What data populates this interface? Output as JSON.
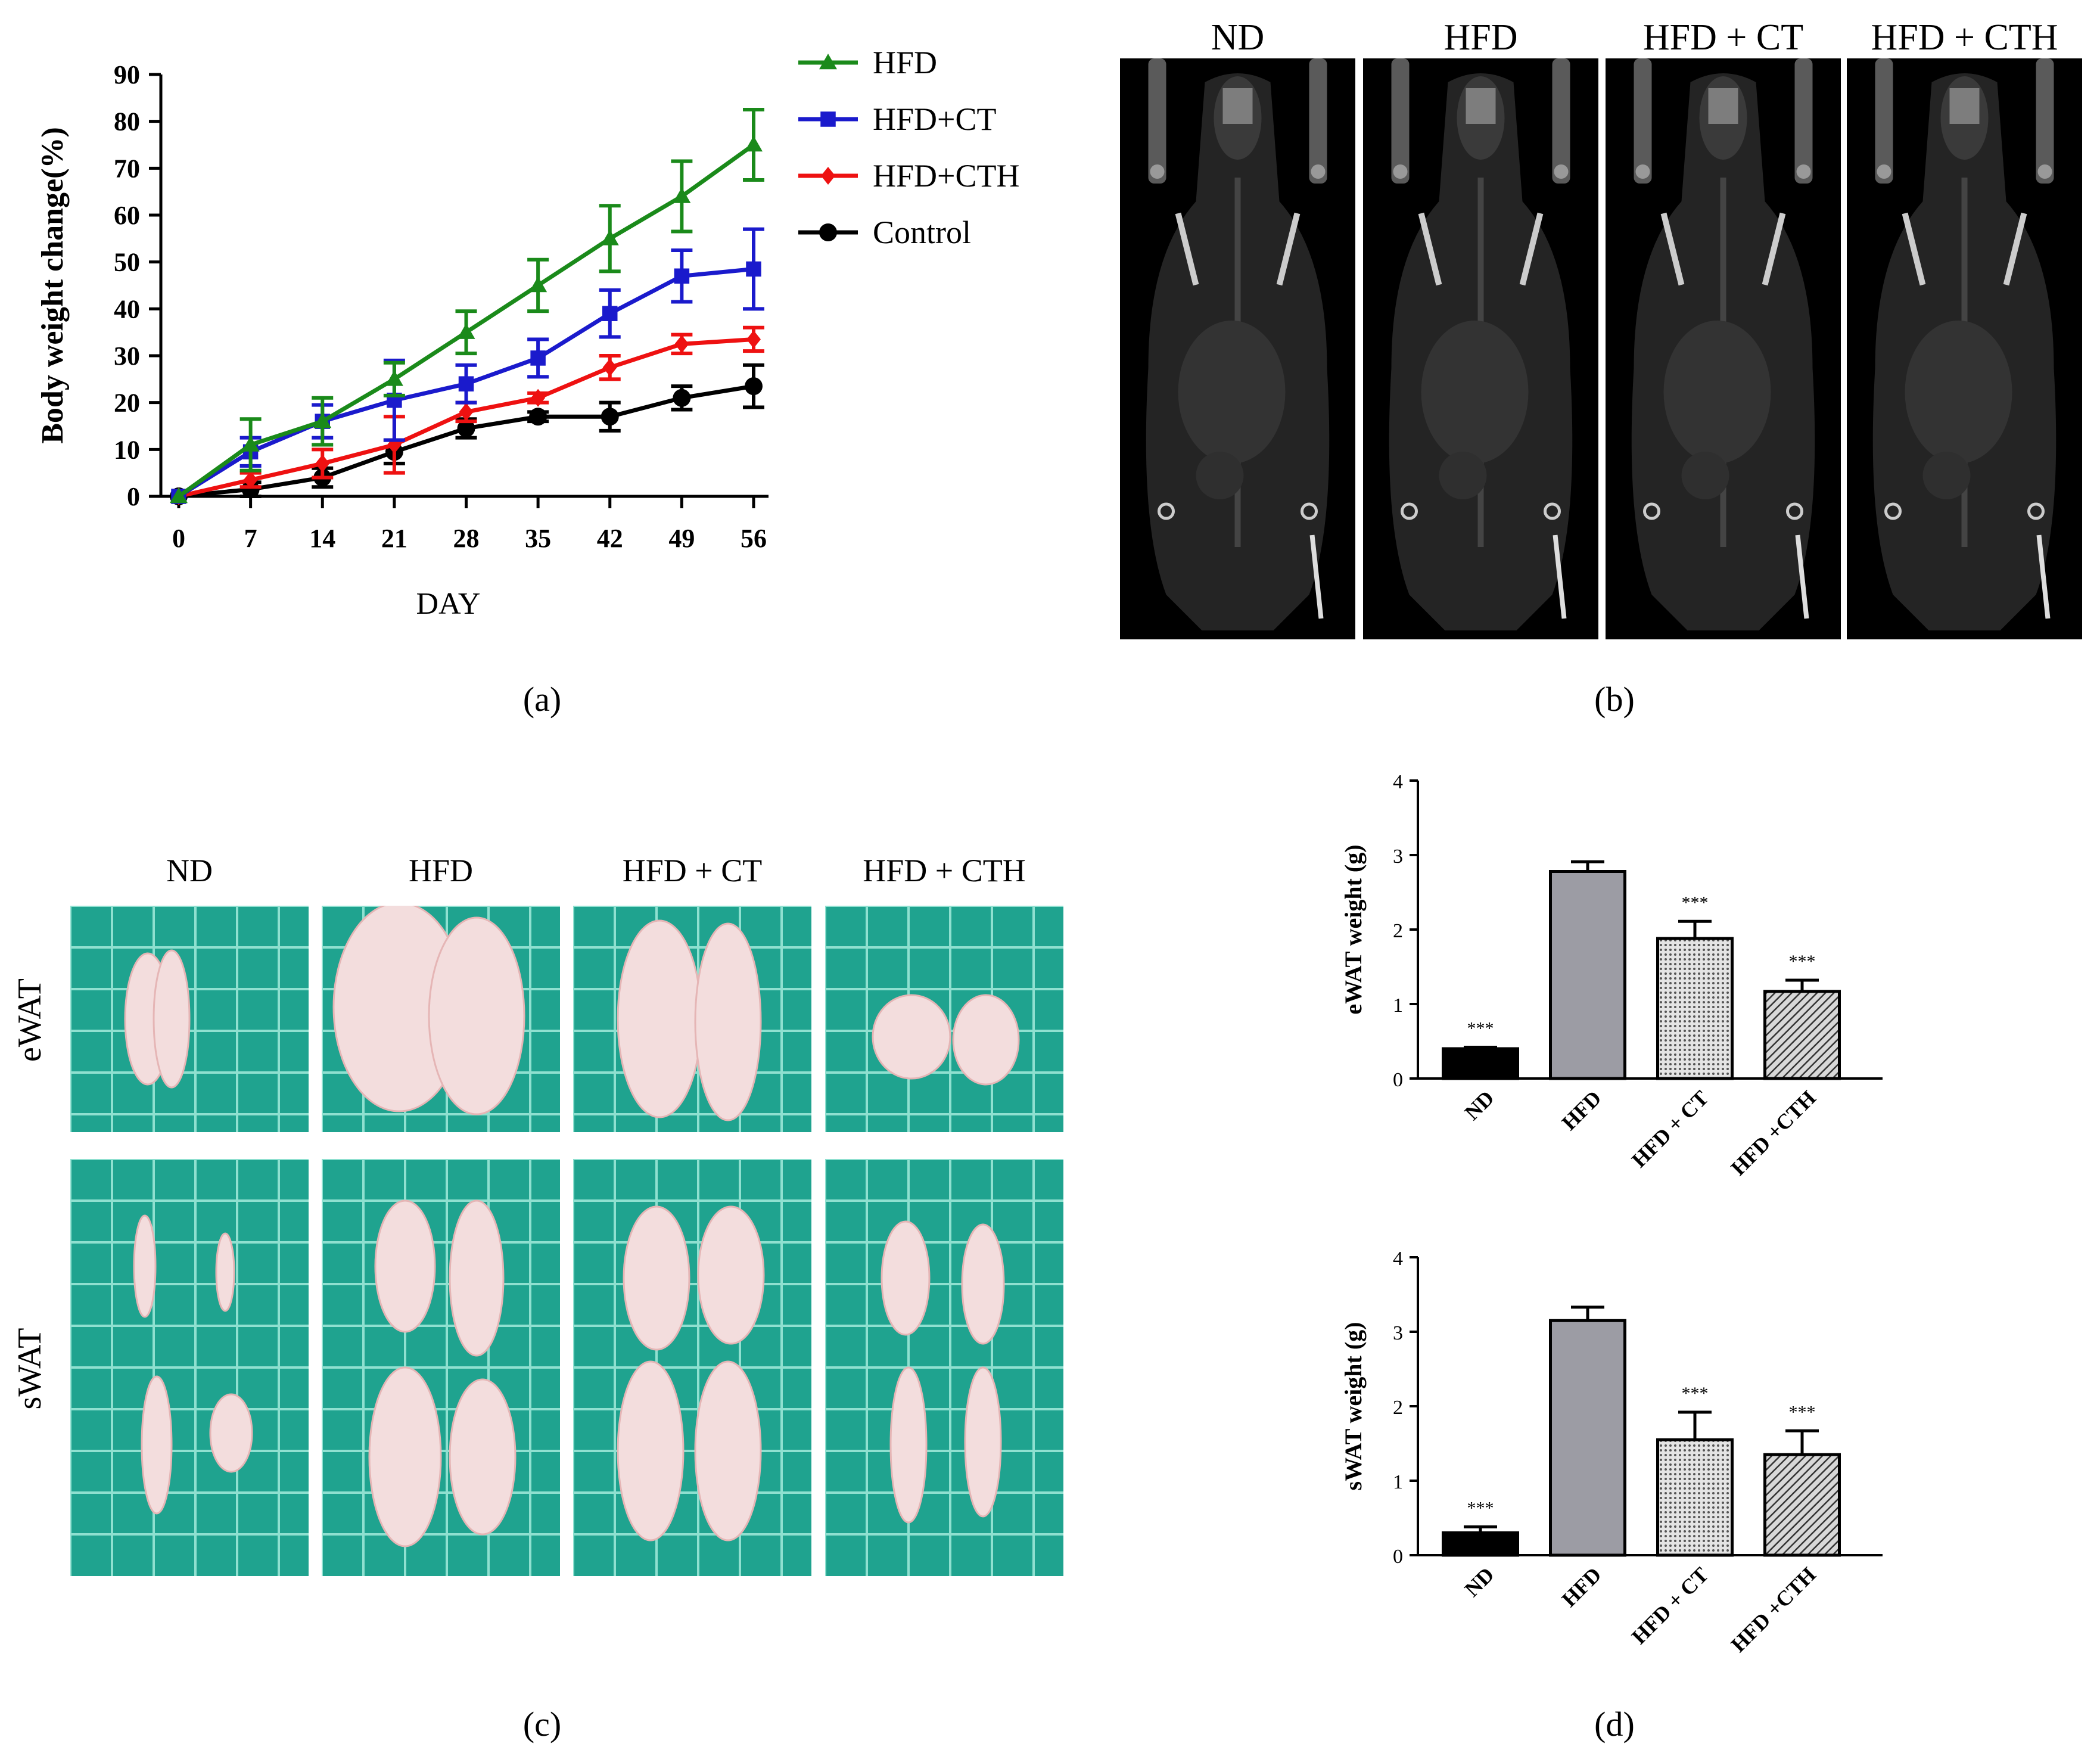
{
  "panel_labels": {
    "a": "(a)",
    "b": "(b)",
    "c": "(c)",
    "d": "(d)"
  },
  "colors": {
    "HFD": "#1a8a1a",
    "HFD+CT": "#1a1acc",
    "HFD+CTH": "#ee1111",
    "Control": "#000000",
    "bar_nd": "#000000",
    "bar_hfd": "#9c9ca4",
    "bar_ct": "#d0d0d0",
    "bar_cth": "#d0d0d0"
  },
  "panel_b": {
    "titles": [
      "ND",
      "HFD",
      "HFD + CT",
      "HFD + CTH"
    ]
  },
  "panel_c": {
    "col_titles": [
      "ND",
      "HFD",
      "HFD + CT",
      "HFD + CTH"
    ],
    "row_labels": [
      "eWAT",
      "sWAT"
    ]
  },
  "chart_data": [
    {
      "id": "body-weight-chart",
      "type": "line",
      "title": "",
      "xlabel": "DAY",
      "ylabel": "Body weight change(%)",
      "x": [
        0,
        7,
        14,
        21,
        28,
        35,
        42,
        49,
        56
      ],
      "xlim": [
        0,
        56
      ],
      "ylim": [
        0,
        90
      ],
      "yticks": [
        0,
        10,
        20,
        30,
        40,
        50,
        60,
        70,
        80,
        90
      ],
      "legend_position": "top-right",
      "series": [
        {
          "name": "HFD",
          "marker": "triangle",
          "values": [
            0,
            11,
            16,
            25,
            35,
            45,
            55,
            64,
            75
          ],
          "errors": [
            0,
            5.5,
            5,
            3.5,
            4.5,
            5.5,
            7,
            7.5,
            7.5
          ]
        },
        {
          "name": "HFD+CT",
          "marker": "square",
          "values": [
            0,
            9.5,
            16,
            20.5,
            24,
            29.5,
            39,
            47,
            48.5
          ],
          "errors": [
            0,
            3,
            3.5,
            8.5,
            4,
            4,
            5,
            5.5,
            8.5
          ]
        },
        {
          "name": "HFD+CTH",
          "marker": "diamond",
          "values": [
            0,
            3.5,
            7,
            11,
            18,
            21,
            27.5,
            32.5,
            33.5
          ],
          "errors": [
            0,
            1.5,
            3,
            6,
            2,
            1,
            2.5,
            2,
            2.5
          ]
        },
        {
          "name": "Control",
          "marker": "circle",
          "values": [
            0,
            1.5,
            4,
            9.5,
            14.5,
            17,
            17,
            21,
            23.5
          ],
          "errors": [
            0,
            1.5,
            2,
            2.5,
            2,
            1,
            3,
            2.5,
            4.5
          ]
        }
      ]
    },
    {
      "id": "ewat-weight-chart",
      "type": "bar",
      "title": "",
      "xlabel": "",
      "ylabel": "eWAT weight (g)",
      "categories": [
        "ND",
        "HFD",
        "HFD + CT",
        "HFD +CTH"
      ],
      "values": [
        0.4,
        2.78,
        1.88,
        1.17
      ],
      "errors": [
        0.02,
        0.13,
        0.23,
        0.15
      ],
      "annotations": [
        "***",
        "",
        "***",
        "***"
      ],
      "ylim": [
        0,
        4
      ],
      "yticks": [
        0,
        1,
        2,
        3,
        4
      ]
    },
    {
      "id": "swat-weight-chart",
      "type": "bar",
      "title": "",
      "xlabel": "",
      "ylabel": "sWAT weight (g)",
      "categories": [
        "ND",
        "HFD",
        "HFD + CT",
        "HFD +CTH"
      ],
      "values": [
        0.3,
        3.15,
        1.55,
        1.35
      ],
      "errors": [
        0.08,
        0.18,
        0.37,
        0.32
      ],
      "annotations": [
        "***",
        "",
        "***",
        "***"
      ],
      "ylim": [
        0,
        4
      ],
      "yticks": [
        0,
        1,
        2,
        3,
        4
      ]
    }
  ]
}
